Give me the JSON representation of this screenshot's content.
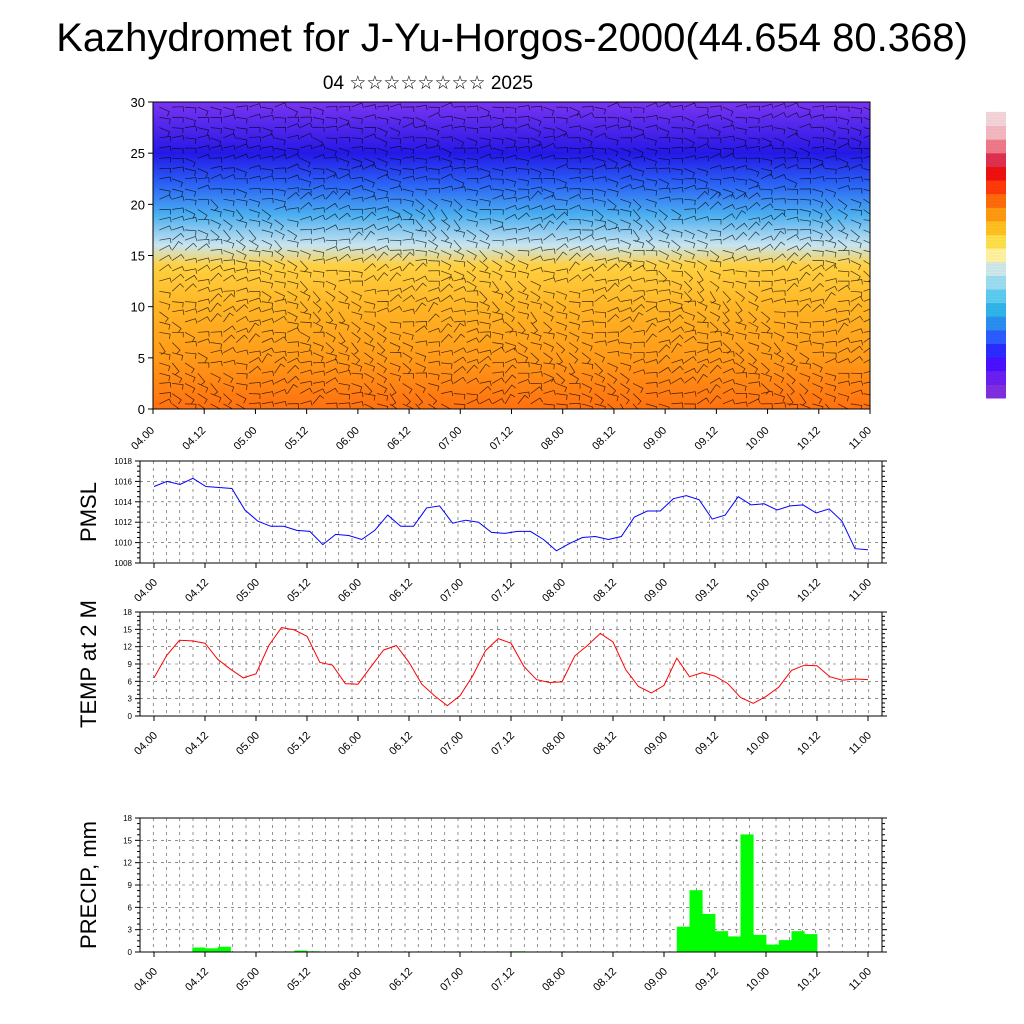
{
  "title": "Kazhydromet for J-Yu-Horgos-2000(44.654 80.368)",
  "subtitle": "04 ☆☆☆☆☆☆☆☆ 2025",
  "time_ticks": [
    "04.00",
    "04.12",
    "05.00",
    "05.12",
    "06.00",
    "06.12",
    "07.00",
    "07.12",
    "08.00",
    "08.12",
    "09.00",
    "09.12",
    "10.00",
    "10.12",
    "11.00"
  ],
  "colorbar": {
    "colors": [
      "#7f2fe0",
      "#6a20f0",
      "#4a10ff",
      "#2b2bff",
      "#2a5cff",
      "#2a8ff0",
      "#2fb5ea",
      "#5ccdf0",
      "#9ddcf0",
      "#cfe8ec",
      "#fff2a0",
      "#ffe04a",
      "#ffc020",
      "#ff9a10",
      "#ff6a0a",
      "#ff3a0a",
      "#f01010",
      "#e03050",
      "#f07888",
      "#f4b8c0",
      "#f4d4d8"
    ]
  },
  "chart_data": [
    {
      "type": "heatmap",
      "title": "",
      "xlabel": "",
      "ylabel": "",
      "ylim": [
        0,
        30
      ],
      "yticks": [
        0,
        5,
        10,
        15,
        20,
        25,
        30
      ],
      "x_ticks": [
        "04.00",
        "04.12",
        "05.00",
        "05.12",
        "06.00",
        "06.12",
        "07.00",
        "07.12",
        "08.00",
        "08.12",
        "09.00",
        "09.12",
        "10.00",
        "10.12",
        "11.00"
      ],
      "layers": [
        {
          "level": 0,
          "color": "#ff7010"
        },
        {
          "level": 5,
          "color": "#ff9a18"
        },
        {
          "level": 10,
          "color": "#ffb525"
        },
        {
          "level": 14,
          "color": "#ffd040"
        },
        {
          "level": 16,
          "color": "#c8e4f0"
        },
        {
          "level": 19,
          "color": "#4aaef0"
        },
        {
          "level": 22,
          "color": "#2a62f5"
        },
        {
          "level": 25,
          "color": "#2418e6"
        },
        {
          "level": 30,
          "color": "#7a34f2"
        }
      ],
      "overlay": "wind barbs"
    },
    {
      "type": "line",
      "ylabel": "PMSL",
      "ylim": [
        1008,
        1018
      ],
      "yticks": [
        1008,
        1010,
        1012,
        1014,
        1016,
        1018
      ],
      "x_ticks": [
        "04.00",
        "04.12",
        "05.00",
        "05.12",
        "06.00",
        "06.12",
        "07.00",
        "07.12",
        "08.00",
        "08.12",
        "09.00",
        "09.12",
        "10.00",
        "10.12",
        "11.00"
      ],
      "line_color": "#0000ff",
      "values": [
        1015.5,
        1016.0,
        1015.7,
        1016.3,
        1015.5,
        1015.4,
        1015.3,
        1013.2,
        1012.1,
        1011.6,
        1011.6,
        1011.2,
        1011.1,
        1009.8,
        1010.8,
        1010.7,
        1010.3,
        1011.2,
        1012.7,
        1011.6,
        1011.6,
        1013.4,
        1013.6,
        1011.9,
        1012.2,
        1012.0,
        1011.0,
        1010.9,
        1011.1,
        1011.1,
        1010.3,
        1009.2,
        1009.9,
        1010.5,
        1010.6,
        1010.3,
        1010.6,
        1012.5,
        1013.1,
        1013.1,
        1014.3,
        1014.6,
        1014.2,
        1012.3,
        1012.7,
        1014.5,
        1013.7,
        1013.8,
        1013.2,
        1013.6,
        1013.7,
        1012.9,
        1013.3,
        1012.1,
        1009.4,
        1009.3
      ],
      "grid": true
    },
    {
      "type": "line",
      "ylabel": "TEMP at 2 M",
      "ylim": [
        0,
        18
      ],
      "yticks": [
        0,
        3,
        6,
        9,
        12,
        15,
        18
      ],
      "x_ticks": [
        "04.00",
        "04.12",
        "05.00",
        "05.12",
        "06.00",
        "06.12",
        "07.00",
        "07.12",
        "08.00",
        "08.12",
        "09.00",
        "09.12",
        "10.00",
        "10.12",
        "11.00"
      ],
      "line_color": "#ff0000",
      "values": [
        6.6,
        10.5,
        13.1,
        13.0,
        12.6,
        9.8,
        8.1,
        6.6,
        7.3,
        12.2,
        15.3,
        14.9,
        13.8,
        9.3,
        8.8,
        5.6,
        5.5,
        8.5,
        11.4,
        12.2,
        9.3,
        5.5,
        3.5,
        1.8,
        3.5,
        7.0,
        11.3,
        13.4,
        12.6,
        8.6,
        6.3,
        5.8,
        5.9,
        10.4,
        12.2,
        14.3,
        12.8,
        8.0,
        5.1,
        4.0,
        5.3,
        10.0,
        6.8,
        7.5,
        6.9,
        5.6,
        3.2,
        2.2,
        3.4,
        5.0,
        7.9,
        8.8,
        8.7,
        6.8,
        6.2,
        6.4,
        6.3
      ],
      "grid": true
    },
    {
      "type": "bar",
      "ylabel": "PRECIP, mm",
      "ylim": [
        0,
        18
      ],
      "yticks": [
        0,
        3,
        6,
        9,
        12,
        15,
        18
      ],
      "x_ticks": [
        "04.00",
        "04.12",
        "05.00",
        "05.12",
        "06.00",
        "06.12",
        "07.00",
        "07.12",
        "08.00",
        "08.12",
        "09.00",
        "09.12",
        "10.00",
        "10.12",
        "11.00"
      ],
      "bar_color": "#00ff00",
      "values": [
        0,
        0,
        0,
        0.6,
        0.5,
        0.7,
        0,
        0,
        0,
        0,
        0,
        0.2,
        0.1,
        0,
        0,
        0,
        0,
        0,
        0,
        0,
        0,
        0,
        0,
        0,
        0,
        0,
        0,
        0,
        0.1,
        0,
        0,
        0,
        0,
        0,
        0,
        0,
        0,
        0,
        0,
        0,
        0,
        3.4,
        8.3,
        5.1,
        2.8,
        2.1,
        15.8,
        2.3,
        1.0,
        1.6,
        2.8,
        2.4,
        0,
        0,
        0,
        0
      ],
      "grid": true
    }
  ]
}
